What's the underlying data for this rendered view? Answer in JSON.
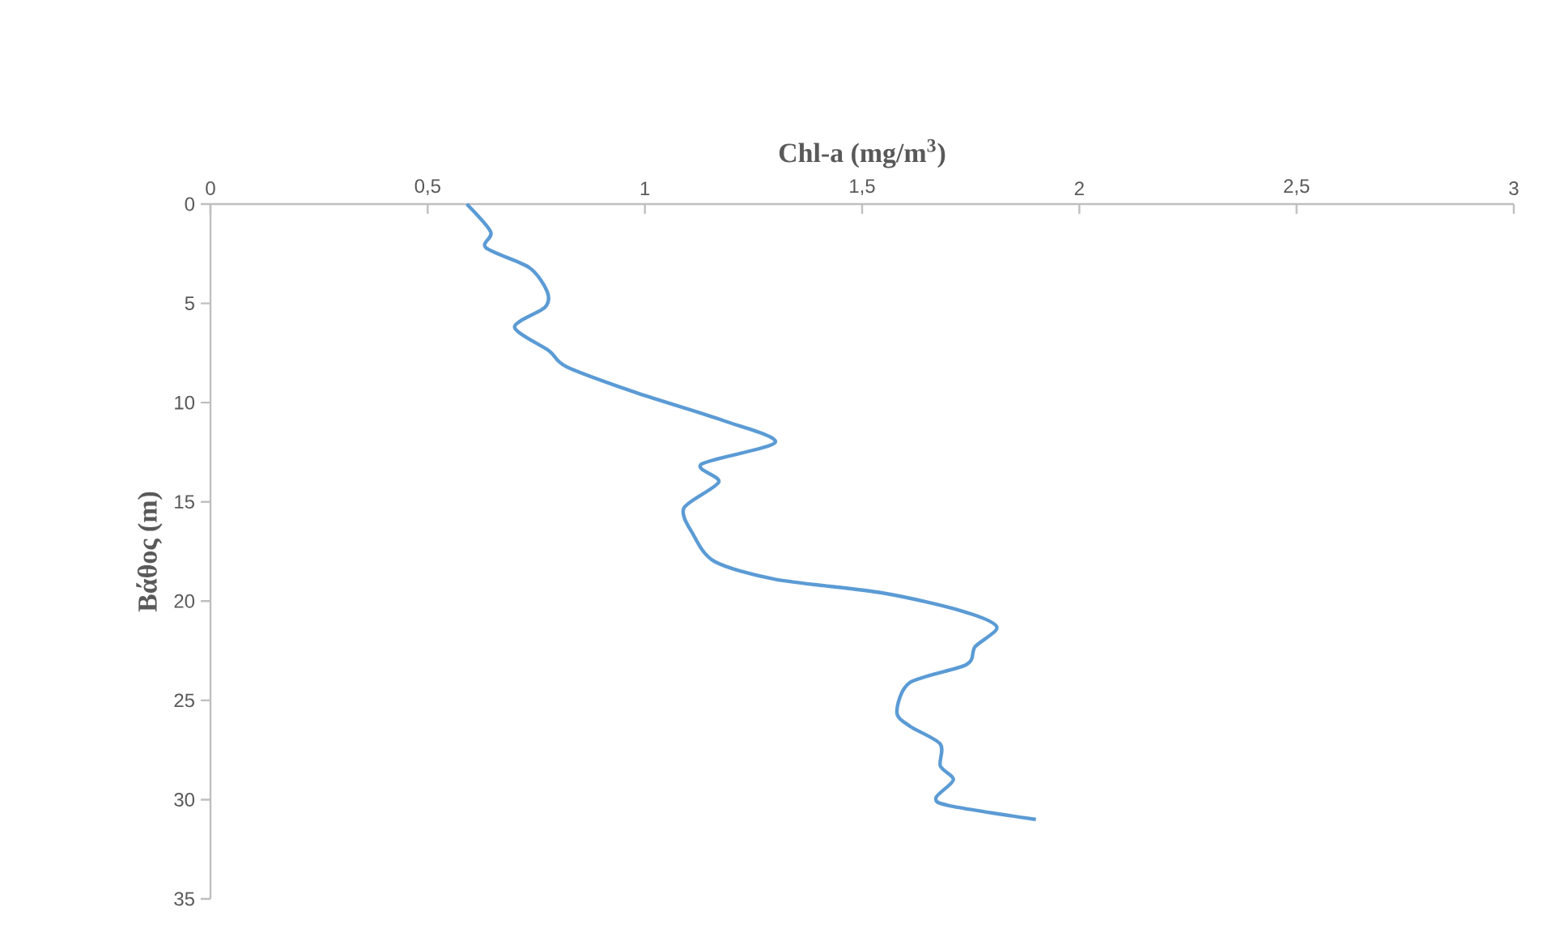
{
  "chart_data": {
    "type": "line",
    "xlabel": "Chl-a (mg/m$^{3}$)",
    "ylabel": "Βάθος (m)",
    "xlim": [
      0,
      3
    ],
    "xticks": [
      0,
      {
        "value": 0.5,
        "label": "0,5"
      },
      1,
      {
        "value": 1.5,
        "label": "1,5"
      },
      2,
      {
        "value": 2.5,
        "label": "2,5"
      },
      3
    ],
    "ylim": [
      35,
      0
    ],
    "yticks": [
      0,
      5,
      10,
      15,
      20,
      25,
      30,
      35
    ],
    "grid": false,
    "legend": false,
    "marker": "none",
    "line_style": "solid",
    "series": [
      {
        "color": "#5b9bd5",
        "x": [
          0.59,
          0.645,
          0.634,
          0.734,
          0.775,
          0.77,
          0.7,
          0.78,
          0.82,
          0.98,
          1.18,
          1.3,
          1.13,
          1.17,
          1.09,
          1.11,
          1.16,
          1.3,
          1.55,
          1.73,
          1.81,
          1.76,
          1.74,
          1.61,
          1.58,
          1.61,
          1.68,
          1.68,
          1.71,
          1.67,
          1.7,
          1.9
        ],
        "values": [
          0,
          1.4,
          2.2,
          3.2,
          4.4,
          5.2,
          6.2,
          7.4,
          8.2,
          9.5,
          10.9,
          12.0,
          13.1,
          14.0,
          15.3,
          16.6,
          18.0,
          18.9,
          19.6,
          20.5,
          21.3,
          22.3,
          23.2,
          24.1,
          25.6,
          26.3,
          27.2,
          28.3,
          29.0,
          29.9,
          30.3,
          31.0
        ]
      }
    ]
  }
}
